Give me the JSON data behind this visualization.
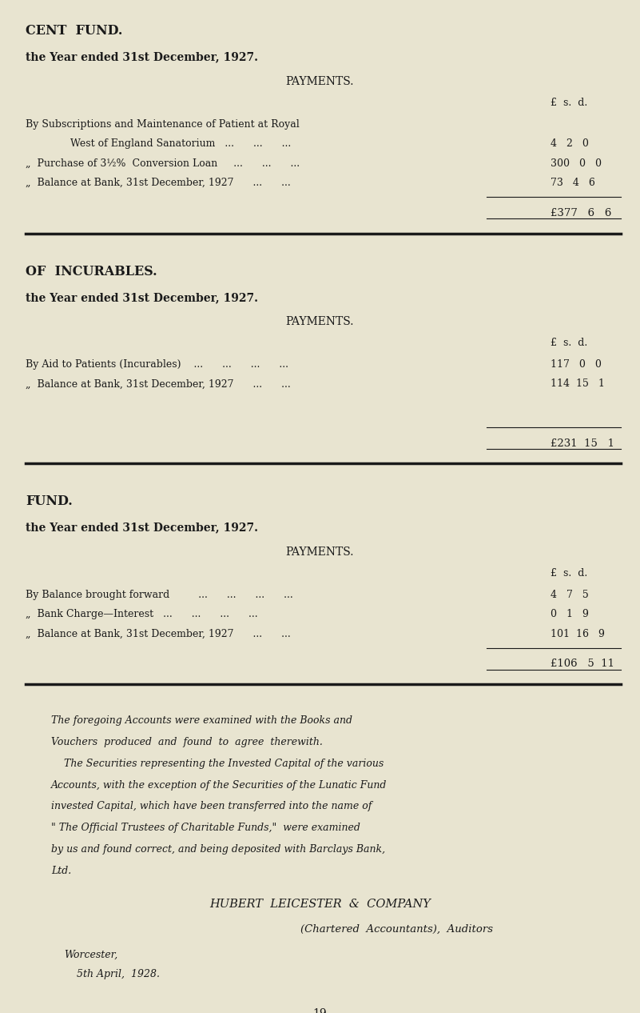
{
  "bg_color": "#e8e4d0",
  "text_color": "#1a1a1a",
  "page_width": 8.01,
  "page_height": 12.66,
  "sections": [
    {
      "title": "CENT  FUND.",
      "subtitle": "the Year ended 31st December, 1927.",
      "heading": "PAYMENTS.",
      "col_header": "£  s.  d.",
      "separator": true
    },
    {
      "title": "OF  INCURABLES.",
      "subtitle": "the Year ended 31st December, 1927.",
      "heading": "PAYMENTS.",
      "col_header": "£  s.  d.",
      "separator": true
    },
    {
      "title": "FUND.",
      "subtitle": "the Year ended 31st December, 1927.",
      "heading": "PAYMENTS.",
      "col_header": "£  s.  d.",
      "separator": false
    }
  ],
  "footer_italic": [
    "The foregoing Accounts were examined with the Books and",
    "Vouchers  produced  and  found  to  agree  therewith.",
    "    The Securities representing the Invested Capital of the various",
    "Accounts, with the exception of the Securities of the Lunatic Fund",
    "invested Capital, which have been transferred into the name of",
    "\" The Official Trustees of Charitable Funds,\"  were examined",
    "by us and found correct, and being deposited with Barclays Bank,",
    "Ltd."
  ],
  "firm_name": "HUBERT  LEICESTER  &  COMPANY",
  "firm_title": "(Chartered  Accountants),  Auditors",
  "location": "Worcester,",
  "date": "    5th April,  1928.",
  "page_number": "19"
}
